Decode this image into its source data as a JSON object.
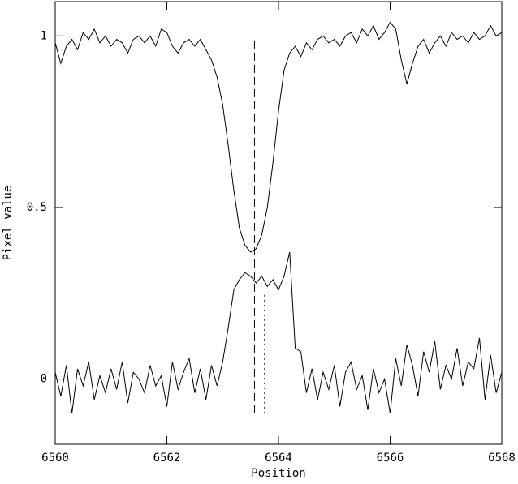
{
  "chart_data": {
    "type": "line",
    "x_label": "Position",
    "y_label": "Pixel value",
    "x": [
      6560.0,
      6560.1,
      6560.2,
      6560.3,
      6560.4,
      6560.5,
      6560.6,
      6560.7,
      6560.8,
      6560.9,
      6561.0,
      6561.1,
      6561.2,
      6561.3,
      6561.4,
      6561.5,
      6561.6,
      6561.7,
      6561.8,
      6561.9,
      6562.0,
      6562.1,
      6562.2,
      6562.3,
      6562.4,
      6562.5,
      6562.6,
      6562.7,
      6562.8,
      6562.9,
      6563.0,
      6563.1,
      6563.2,
      6563.3,
      6563.4,
      6563.5,
      6563.6,
      6563.7,
      6563.8,
      6563.9,
      6564.0,
      6564.1,
      6564.2,
      6564.3,
      6564.4,
      6564.5,
      6564.6,
      6564.7,
      6564.8,
      6564.9,
      6565.0,
      6565.1,
      6565.2,
      6565.3,
      6565.4,
      6565.5,
      6565.6,
      6565.7,
      6565.8,
      6565.9,
      6566.0,
      6566.1,
      6566.2,
      6566.3,
      6566.4,
      6566.5,
      6566.6,
      6566.7,
      6566.8,
      6566.9,
      6567.0,
      6567.1,
      6567.2,
      6567.3,
      6567.4,
      6567.5,
      6567.6,
      6567.7,
      6567.8,
      6567.9,
      6568.0
    ],
    "series": [
      {
        "color": "#000000",
        "values": [
          0.98,
          0.92,
          0.97,
          0.99,
          0.96,
          1.01,
          0.99,
          1.02,
          0.98,
          1.0,
          0.97,
          0.99,
          0.98,
          0.95,
          0.99,
          1.0,
          0.98,
          1.0,
          0.97,
          1.02,
          1.01,
          0.97,
          0.95,
          0.98,
          0.99,
          0.97,
          0.99,
          0.96,
          0.93,
          0.88,
          0.8,
          0.68,
          0.55,
          0.44,
          0.39,
          0.37,
          0.38,
          0.42,
          0.5,
          0.63,
          0.78,
          0.9,
          0.95,
          0.97,
          0.94,
          0.98,
          0.96,
          0.99,
          1.0,
          0.98,
          0.99,
          0.97,
          1.0,
          1.01,
          0.98,
          1.02,
          1.0,
          1.03,
          0.99,
          1.01,
          1.04,
          1.02,
          0.93,
          0.86,
          0.92,
          0.97,
          0.99,
          0.95,
          0.98,
          1.0,
          0.97,
          1.01,
          0.99,
          1.0,
          0.98,
          1.01,
          0.99,
          1.0,
          1.03,
          1.0,
          1.01
        ]
      },
      {
        "color": "#000000",
        "values": [
          0.02,
          -0.05,
          0.04,
          -0.1,
          0.03,
          -0.02,
          0.05,
          -0.06,
          0.01,
          -0.04,
          0.03,
          -0.03,
          0.05,
          -0.07,
          0.02,
          0.0,
          -0.04,
          0.04,
          -0.02,
          0.01,
          -0.08,
          0.05,
          -0.03,
          0.02,
          0.06,
          -0.04,
          0.03,
          -0.06,
          0.04,
          -0.02,
          0.05,
          0.15,
          0.26,
          0.29,
          0.31,
          0.3,
          0.28,
          0.3,
          0.27,
          0.29,
          0.26,
          0.3,
          0.37,
          0.09,
          0.08,
          -0.04,
          0.03,
          -0.06,
          0.02,
          -0.03,
          0.04,
          -0.08,
          0.02,
          0.05,
          -0.03,
          0.01,
          -0.09,
          0.03,
          -0.04,
          0.0,
          -0.1,
          0.06,
          -0.02,
          0.1,
          0.04,
          -0.05,
          0.08,
          0.02,
          0.11,
          -0.03,
          0.04,
          0.0,
          0.09,
          -0.02,
          0.05,
          0.03,
          0.12,
          -0.06,
          0.07,
          -0.04,
          0.02
        ]
      }
    ],
    "markers": [
      {
        "x": 6563.57,
        "y0": -0.1,
        "y1": 1.0,
        "style": "dashed"
      },
      {
        "x": 6563.75,
        "y0": -0.1,
        "y1": 0.25,
        "style": "dotted"
      }
    ],
    "xlim": [
      6560,
      6568
    ],
    "xticks": [
      6560,
      6562,
      6564,
      6566,
      6568
    ],
    "ylim": [
      -0.19,
      1.1
    ],
    "yticks": [
      0,
      0.5,
      1
    ]
  }
}
